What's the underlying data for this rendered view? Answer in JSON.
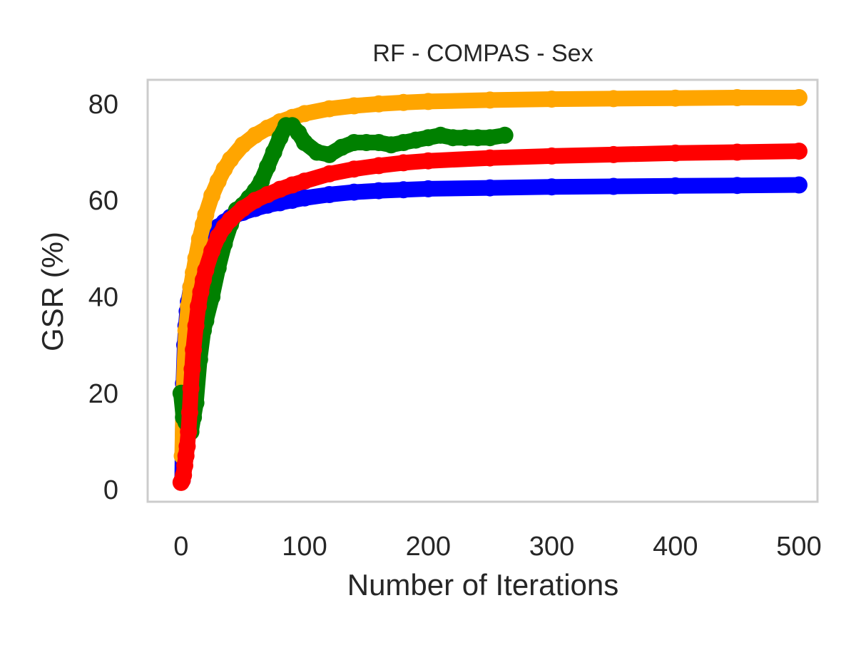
{
  "chart_data": {
    "type": "scatter",
    "title": "RF - COMPAS - Sex",
    "xlabel": "Number of Iterations",
    "ylabel": "GSR (%)",
    "xlim": [
      -27,
      515
    ],
    "ylim": [
      -2.5,
      85
    ],
    "xticks": [
      0,
      100,
      200,
      300,
      400,
      500
    ],
    "yticks": [
      0,
      20,
      40,
      60,
      80
    ],
    "x_tick_labels": [
      "0",
      "100",
      "200",
      "300",
      "400",
      "500"
    ],
    "y_tick_labels": [
      "0",
      "20",
      "40",
      "60",
      "80"
    ],
    "grid": false,
    "legend": false,
    "series": [
      {
        "color": "#0000ff",
        "x": [
          1,
          2,
          3,
          4,
          5,
          6,
          8,
          10,
          12,
          15,
          18,
          20,
          25,
          30,
          35,
          40,
          50,
          60,
          70,
          80,
          90,
          100,
          120,
          140,
          160,
          180,
          200,
          250,
          300,
          350,
          400,
          450,
          500
        ],
        "y": [
          2,
          22,
          30,
          34,
          37,
          39,
          42,
          44,
          46,
          48,
          50,
          51,
          53,
          54.5,
          55.5,
          56.5,
          57.5,
          58.3,
          59,
          59.5,
          60,
          60.5,
          61.2,
          61.7,
          62,
          62.2,
          62.4,
          62.6,
          62.8,
          62.9,
          63,
          63.1,
          63.2
        ]
      },
      {
        "color": "#ffa500",
        "x": [
          1,
          2,
          4,
          6,
          8,
          10,
          12,
          15,
          18,
          20,
          25,
          30,
          35,
          40,
          50,
          60,
          70,
          80,
          90,
          100,
          120,
          140,
          160,
          180,
          200,
          250,
          300,
          350,
          400,
          450,
          500
        ],
        "y": [
          7,
          20,
          33,
          38,
          42,
          45,
          48,
          52,
          55,
          57,
          61,
          64,
          66.5,
          68.5,
          71.5,
          73.5,
          75,
          76.3,
          77.2,
          78,
          79,
          79.6,
          80,
          80.3,
          80.5,
          80.8,
          81,
          81.1,
          81.2,
          81.3,
          81.3
        ]
      },
      {
        "color": "#008000",
        "x": [
          0,
          2,
          4,
          6,
          8,
          10,
          12,
          15,
          18,
          20,
          25,
          30,
          35,
          40,
          45,
          50,
          55,
          60,
          65,
          70,
          75,
          80,
          85,
          90,
          95,
          100,
          110,
          120,
          130,
          140,
          150,
          160,
          170,
          180,
          190,
          200,
          210,
          220,
          230,
          240,
          250,
          262
        ],
        "y": [
          20,
          15,
          14,
          13,
          12,
          15,
          18,
          27,
          33,
          35,
          40,
          46,
          51,
          55,
          58,
          59,
          60.5,
          62,
          64,
          67,
          70,
          73,
          75.5,
          75.5,
          74,
          72,
          70,
          69.5,
          71,
          72,
          72,
          72,
          71.5,
          72,
          72.5,
          73,
          73.5,
          73,
          73,
          73,
          73,
          73.5
        ]
      },
      {
        "color": "#ff0000",
        "x": [
          0,
          1,
          2,
          3,
          4,
          5,
          6,
          7,
          8,
          9,
          10,
          12,
          14,
          16,
          18,
          20,
          25,
          30,
          35,
          40,
          50,
          60,
          70,
          80,
          90,
          100,
          120,
          140,
          160,
          180,
          200,
          250,
          300,
          350,
          400,
          450,
          500
        ],
        "y": [
          1.5,
          2,
          3,
          5,
          7,
          9,
          12,
          16,
          21,
          25,
          29,
          34,
          38,
          41,
          43.5,
          45.5,
          49.5,
          52.5,
          54.5,
          56,
          58.3,
          60,
          61.2,
          62.3,
          63.2,
          64,
          65.5,
          66.5,
          67.2,
          67.8,
          68.2,
          68.8,
          69.2,
          69.5,
          69.8,
          70,
          70.2
        ]
      }
    ]
  }
}
